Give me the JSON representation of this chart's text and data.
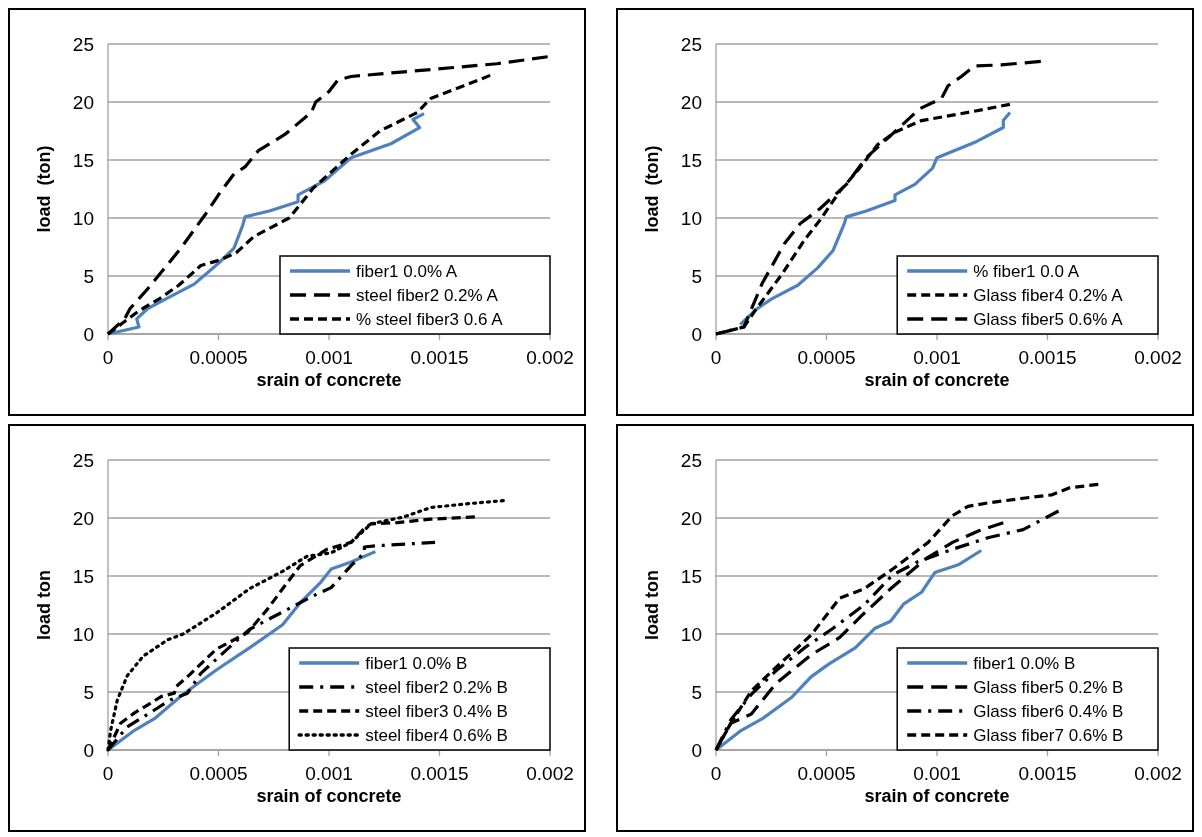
{
  "chart_data": [
    {
      "type": "line",
      "xlabel": "srain of concrete",
      "ylabel": "load  (ton)",
      "xlim": [
        0,
        0.002
      ],
      "xticks": [
        0,
        0.0005,
        0.001,
        0.0015,
        0.002
      ],
      "ylim": [
        0,
        25
      ],
      "yticks": [
        0,
        5,
        10,
        15,
        20,
        25
      ],
      "grid": "y",
      "legend": "bottom right",
      "series": [
        {
          "name": "fiber1 0.0% A",
          "color": "#4f81bd",
          "line_style": "solid",
          "x": [
            0,
            0.00014,
            0.00013,
            0.00018,
            0.00026,
            0.00039,
            0.0005,
            0.00057,
            0.00061,
            0.00062,
            0.00073,
            0.00086,
            0.00086,
            0.00098,
            0.0011,
            0.00128,
            0.00141,
            0.00138,
            0.00143
          ],
          "values": [
            0,
            0.6,
            1.3,
            2.2,
            3,
            4.3,
            6.1,
            7.4,
            9.4,
            10.1,
            10.6,
            11.4,
            12,
            13.2,
            15.2,
            16.4,
            17.8,
            18.5,
            19
          ]
        },
        {
          "name": "steel fiber2 0.2% A",
          "color": "#000000",
          "line_style": "longdash",
          "x": [
            0,
            7.5e-05,
            0.0001,
            0.00018,
            0.00033,
            0.00044,
            0.0005,
            0.00057,
            0.00062,
            0.00068,
            0.0008,
            0.00092,
            0.00094,
            0.001,
            0.00104,
            0.0011,
            0.00146,
            0.00176,
            0.00199
          ],
          "values": [
            0,
            1.3,
            2.2,
            3.9,
            7.4,
            10.3,
            12,
            13.8,
            14.4,
            15.8,
            17.2,
            19.1,
            20,
            20.9,
            21.9,
            22.2,
            22.8,
            23.3,
            23.9
          ]
        },
        {
          "name": "% steel fiber3 0.6 A",
          "color": "#000000",
          "line_style": "dashed",
          "x": [
            0,
            0.00014,
            0.00023,
            0.00032,
            0.00042,
            0.00051,
            0.00058,
            0.00066,
            0.00082,
            0.00093,
            0.001,
            0.0011,
            0.00123,
            0.0014,
            0.00146,
            0.00161,
            0.00173
          ],
          "values": [
            0,
            2,
            3,
            4.2,
            5.9,
            6.4,
            7,
            8.4,
            10,
            12.6,
            13.8,
            15.5,
            17.5,
            19.1,
            20.3,
            21.4,
            22.3
          ]
        }
      ]
    },
    {
      "type": "line",
      "xlabel": "srain of concrete",
      "ylabel": "load  (ton)",
      "xlim": [
        0,
        0.002
      ],
      "xticks": [
        0,
        0.0005,
        0.001,
        0.0015,
        0.002
      ],
      "ylim": [
        0,
        25
      ],
      "yticks": [
        0,
        5,
        10,
        15,
        20,
        25
      ],
      "grid": "y",
      "legend": "bottom right",
      "series": [
        {
          "name": "% fiber1 0.0 A",
          "color": "#4f81bd",
          "line_style": "solid",
          "x": [
            0.00011,
            0.00018,
            0.00025,
            0.00037,
            0.00046,
            0.00053,
            0.00058,
            0.00059,
            0.00068,
            0.00081,
            0.00081,
            0.0009,
            0.00098,
            0.001,
            0.00118,
            0.0013,
            0.0013,
            0.00133
          ],
          "values": [
            0.8,
            2.1,
            3,
            4.2,
            5.7,
            7.2,
            9.5,
            10.1,
            10.6,
            11.5,
            12,
            12.9,
            14.3,
            15.2,
            16.6,
            17.8,
            18.4,
            19.1
          ]
        },
        {
          "name": "Glass fiber4 0.2% A",
          "color": "#000000",
          "line_style": "dashed",
          "x": [
            0,
            0.000126,
            0.00018,
            0.0003,
            0.0004,
            0.00047,
            0.00056,
            0.00065,
            0.00073,
            0.00081,
            0.00093,
            0.00114,
            0.00133
          ],
          "values": [
            0,
            0.6,
            2.1,
            5.2,
            8.1,
            9.8,
            12.3,
            14.3,
            16.3,
            17.4,
            18.4,
            19.1,
            19.8
          ]
        },
        {
          "name": "Glass fiber5 0.6% A",
          "color": "#000000",
          "line_style": "longdash",
          "x": [
            0,
            0.000126,
            0.00021,
            0.00031,
            0.00038,
            0.00047,
            0.00059,
            0.00068,
            0.00079,
            0.00092,
            0.00102,
            0.00105,
            0.00111,
            0.00117,
            0.00129,
            0.00147
          ],
          "values": [
            0,
            0.6,
            4.4,
            7.8,
            9.5,
            10.8,
            12.9,
            15.2,
            17.1,
            19.4,
            20.3,
            21.4,
            22.2,
            23.1,
            23.2,
            23.5
          ]
        }
      ]
    },
    {
      "type": "line",
      "xlabel": "srain of concrete",
      "ylabel": "load ton",
      "xlim": [
        0,
        0.002
      ],
      "xticks": [
        0,
        0.0005,
        0.001,
        0.0015,
        0.002
      ],
      "ylim": [
        0,
        25
      ],
      "yticks": [
        0,
        5,
        10,
        15,
        20,
        25
      ],
      "grid": "y",
      "legend": "bottom right",
      "series": [
        {
          "name": "fiber1 0.0% B",
          "color": "#4f81bd",
          "line_style": "solid",
          "x": [
            0,
            0.00012,
            0.00021,
            0.00034,
            0.00049,
            0.00064,
            0.00079,
            0.00087,
            0.00096,
            0.00101,
            0.0011,
            0.00121
          ],
          "values": [
            0,
            1.7,
            2.7,
            4.8,
            6.9,
            8.8,
            10.8,
            12.7,
            14.4,
            15.6,
            16.2,
            17.1
          ]
        },
        {
          "name": "steel fiber2 0.2% B",
          "color": "#000000",
          "line_style": "dashdot",
          "x": [
            0,
            8.7e-05,
            0.00019,
            0.00028,
            0.00036,
            0.00042,
            0.00054,
            0.00064,
            0.00081,
            0.00093,
            0.00101,
            0.0011,
            0.00116,
            0.00116,
            0.00121,
            0.00148
          ],
          "values": [
            0,
            2,
            3.2,
            4.3,
            4.9,
            6.6,
            8.7,
            10.4,
            12.1,
            13.3,
            14,
            15.9,
            17,
            17.5,
            17.6,
            17.9
          ]
        },
        {
          "name": "steel fiber3 0.4% B",
          "color": "#000000",
          "line_style": "dashed",
          "x": [
            0,
            5.7e-05,
            0.00012,
            0.00019,
            0.00024,
            0.0003,
            0.00031,
            0.00037,
            0.00049,
            0.00063,
            0.00072,
            0.00079,
            0.00087,
            0.00099,
            0.0011,
            0.00116,
            0.00119,
            0.00131,
            0.00146,
            0.00166
          ],
          "values": [
            0,
            2.3,
            3.2,
            4,
            4.6,
            4.9,
            5.5,
            6.5,
            8.7,
            10.1,
            12.1,
            13.9,
            15.9,
            17.3,
            17.9,
            19.1,
            19.5,
            19.6,
            19.9,
            20.1
          ]
        },
        {
          "name": "steel fiber4 0.6% B",
          "color": "#000000",
          "line_style": "dotted",
          "x": [
            0,
            1.2e-05,
            4.2e-05,
            8.7e-05,
            0.00016,
            0.00027,
            0.00034,
            0.00049,
            0.00064,
            0.00079,
            0.0009,
            0.00101,
            0.0011,
            0.00119,
            0.00134,
            0.00146,
            0.00161,
            0.00179
          ],
          "values": [
            0,
            1.7,
            4.3,
            6.4,
            8.1,
            9.5,
            10,
            11.8,
            13.9,
            15.4,
            16.7,
            17,
            17.9,
            19.5,
            20.1,
            20.9,
            21.2,
            21.5
          ]
        }
      ]
    },
    {
      "type": "line",
      "xlabel": "srain of concrete",
      "ylabel": "load ton",
      "xlim": [
        0,
        0.002
      ],
      "xticks": [
        0,
        0.0005,
        0.001,
        0.0015,
        0.002
      ],
      "ylim": [
        0,
        25
      ],
      "yticks": [
        0,
        5,
        10,
        15,
        20,
        25
      ],
      "grid": "y",
      "legend": "bottom right",
      "series": [
        {
          "name": "fiber1 0.0% B",
          "color": "#4f81bd",
          "line_style": "solid",
          "x": [
            0,
            0.000115,
            0.00021,
            0.00034,
            0.00043,
            0.00051,
            0.00063,
            0.00072,
            0.00079,
            0.00085,
            0.00093,
            0.00099,
            0.0011,
            0.0012
          ],
          "values": [
            0,
            1.7,
            2.7,
            4.5,
            6.3,
            7.4,
            8.8,
            10.5,
            11.1,
            12.6,
            13.6,
            15.3,
            16,
            17.2
          ]
        },
        {
          "name": "Glass fiber5 0.2% B",
          "color": "#000000",
          "line_style": "longdash",
          "x": [
            0,
            6.7e-05,
            0.00016,
            0.00027,
            0.00043,
            0.00056,
            0.00066,
            0.00079,
            0.00095,
            0.00107,
            0.00119,
            0.0013
          ],
          "values": [
            0,
            2.3,
            3.1,
            5.7,
            8.2,
            9.7,
            11.6,
            13.9,
            16.5,
            17.9,
            18.9,
            19.6
          ]
        },
        {
          "name": "Glass fiber6 0.4% B",
          "color": "#000000",
          "line_style": "dashdot",
          "x": [
            0,
            6.7e-05,
            0.00016,
            0.00027,
            0.0004,
            0.00053,
            0.00067,
            0.0008,
            0.00091,
            0.00107,
            0.00123,
            0.00139,
            0.00155
          ],
          "values": [
            0,
            2.6,
            4.8,
            6.8,
            8.8,
            10.5,
            12.5,
            15.1,
            16.2,
            17.3,
            18.3,
            19,
            20.6
          ]
        },
        {
          "name": "Glass fiber7 0.6% B",
          "color": "#000000",
          "line_style": "dashed",
          "x": [
            0,
            6.7e-05,
            0.00016,
            0.00027,
            0.00043,
            0.00056,
            0.00067,
            0.0008,
            0.00096,
            0.00107,
            0.00114,
            0.00123,
            0.00139,
            0.00152,
            0.0016,
            0.00173
          ],
          "values": [
            0,
            2.3,
            5.1,
            7.1,
            9.9,
            13.1,
            13.9,
            15.6,
            17.9,
            20.2,
            21,
            21.3,
            21.7,
            22,
            22.6,
            22.9
          ]
        }
      ]
    }
  ]
}
